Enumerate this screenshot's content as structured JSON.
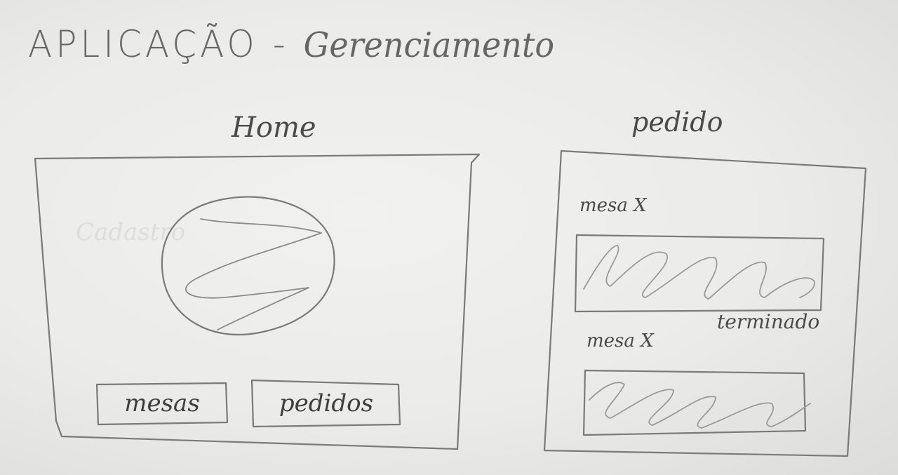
{
  "title": {
    "main": "APLICAÇÃO",
    "separator": "-",
    "subtitle": "Gerenciamento"
  },
  "screens": {
    "home": {
      "label": "Home",
      "image_placeholder": "image-placeholder",
      "buttons": {
        "mesas": "mesas",
        "pedidos": "pedidos"
      }
    },
    "pedido": {
      "label": "pedido",
      "orders": [
        {
          "label": "mesa X",
          "status": "terminado"
        },
        {
          "label": "mesa X"
        }
      ]
    }
  },
  "colors": {
    "pencil": "#777777",
    "paper": "#ececea"
  }
}
